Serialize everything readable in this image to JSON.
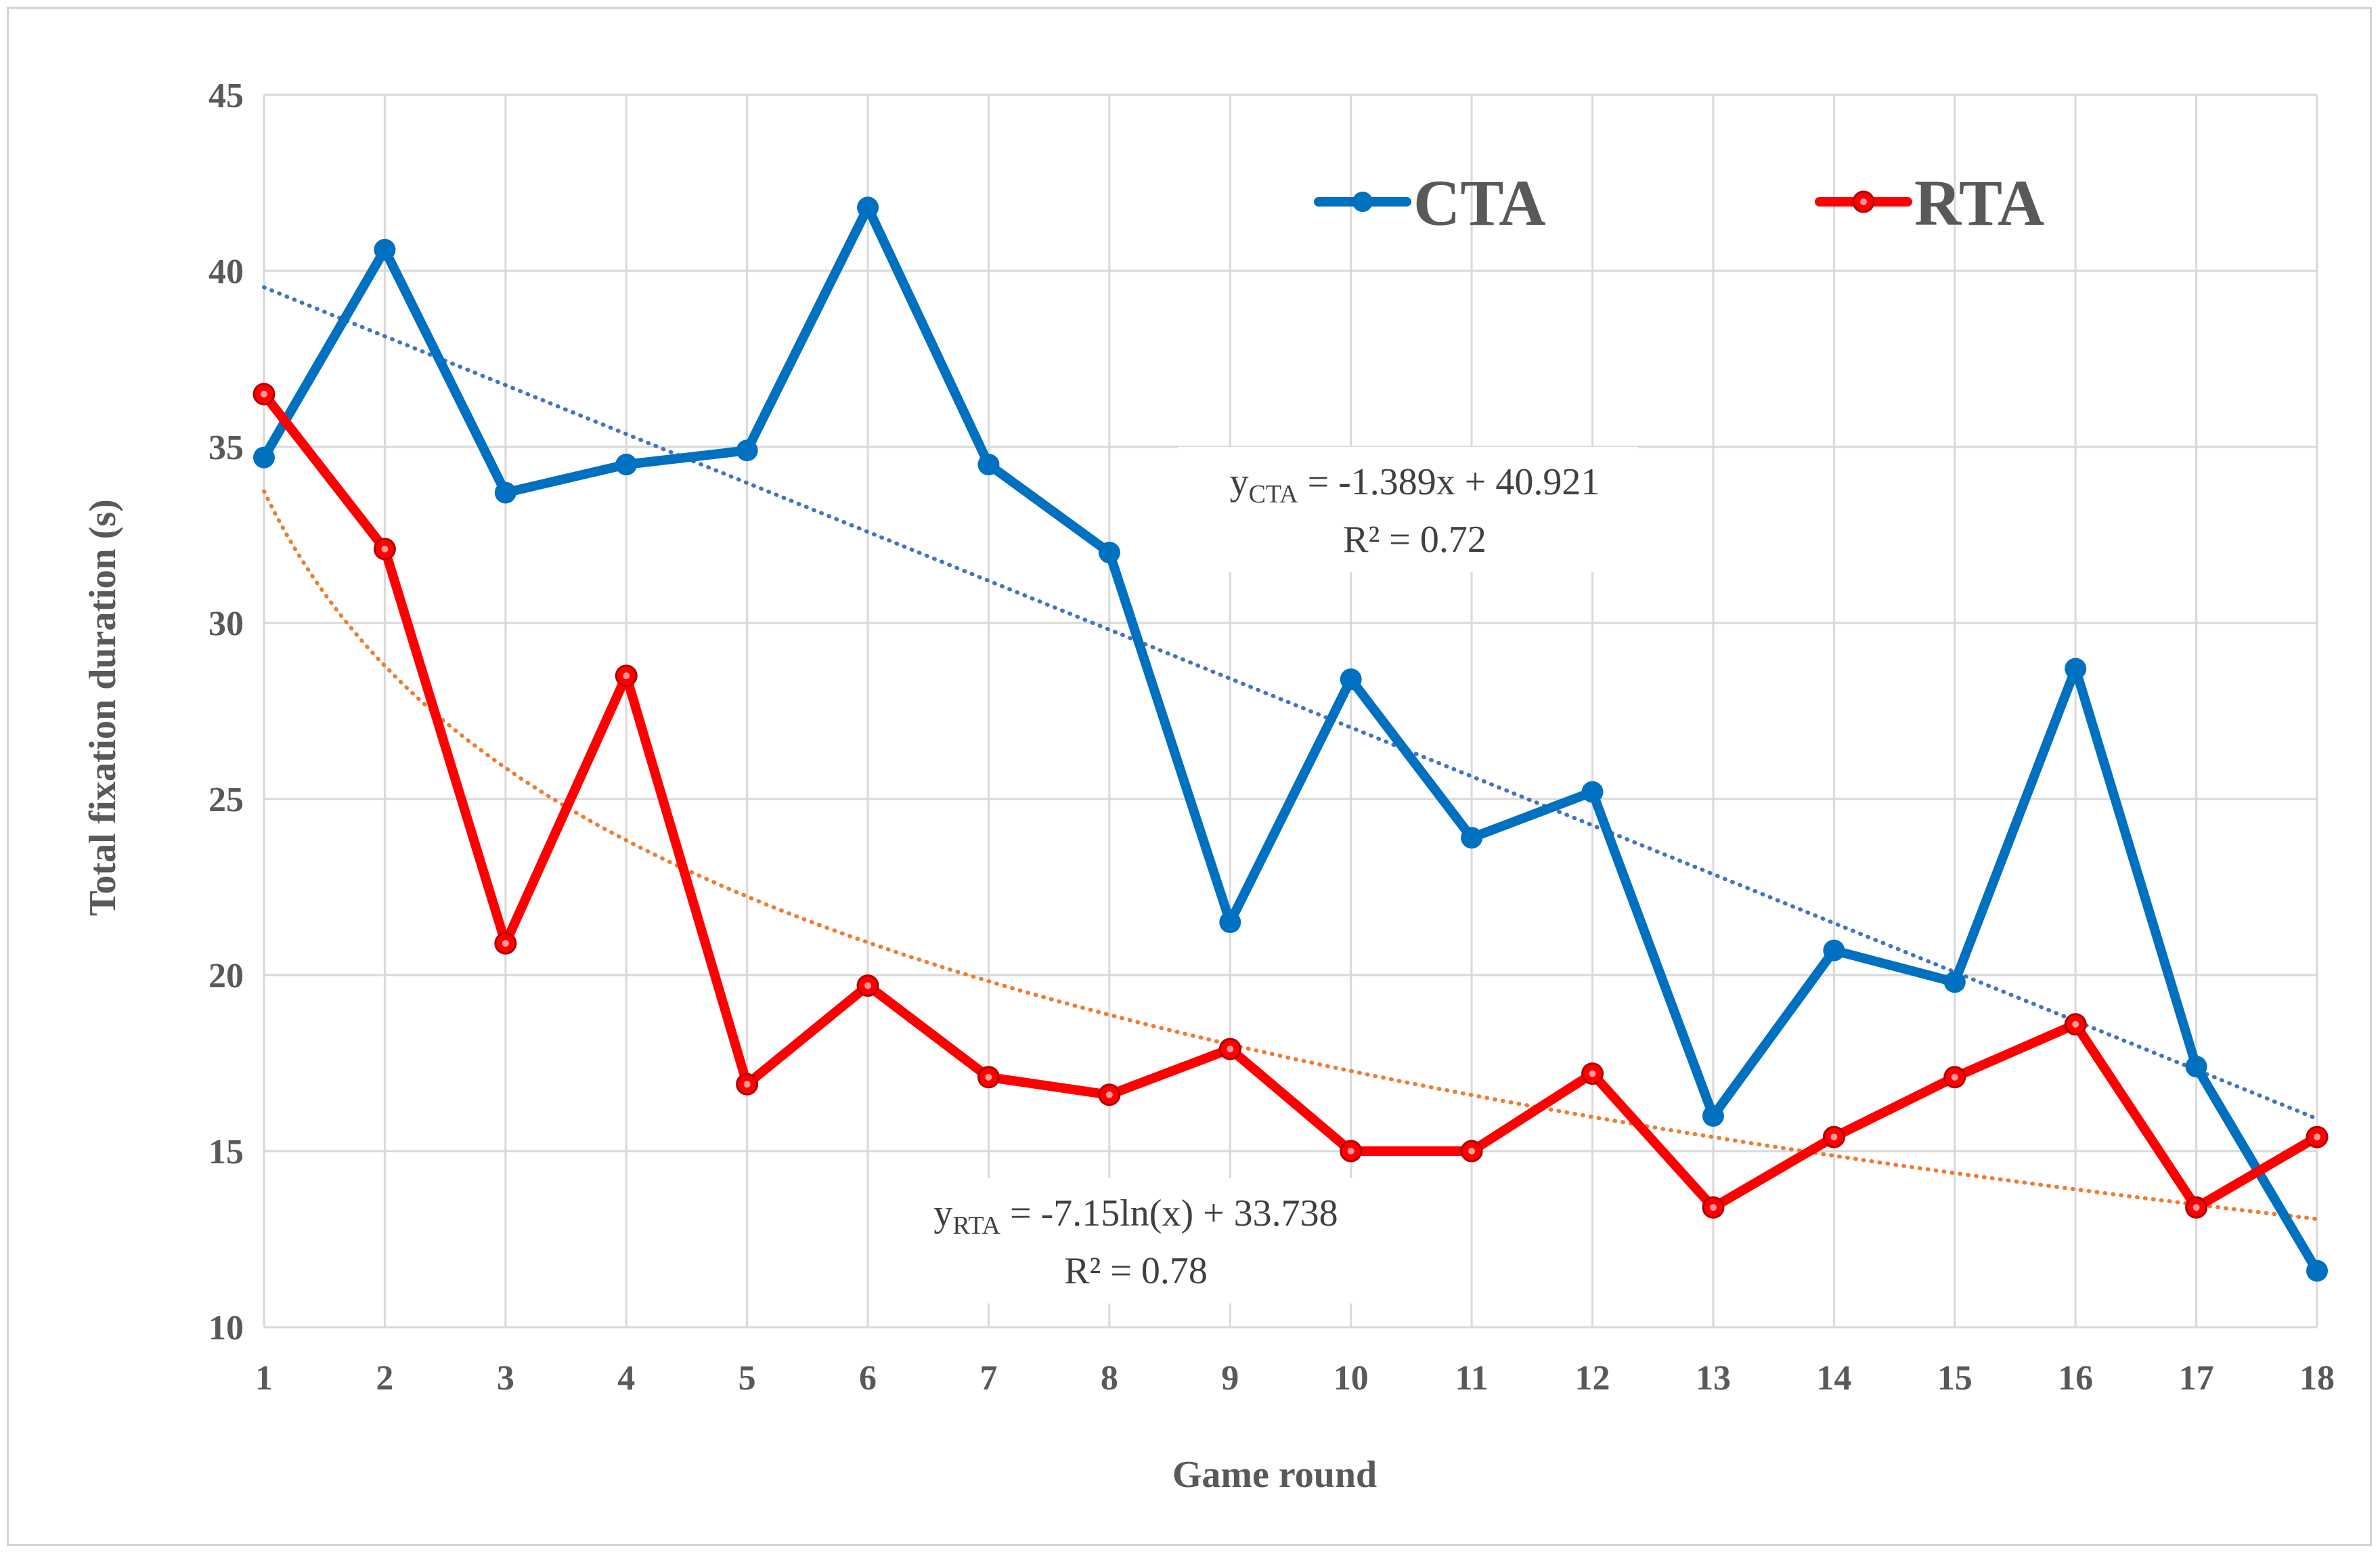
{
  "chart_data": {
    "type": "line",
    "title": "",
    "xlabel": "Game round",
    "ylabel": "Total fixation duration (s)",
    "ylim": [
      10,
      45
    ],
    "y_ticks": [
      "10",
      "15",
      "20",
      "25",
      "30",
      "35",
      "40",
      "45"
    ],
    "x": [
      1,
      2,
      3,
      4,
      5,
      6,
      7,
      8,
      9,
      10,
      11,
      12,
      13,
      14,
      15,
      16,
      17,
      18
    ],
    "x_ticks": [
      "1",
      "2",
      "3",
      "4",
      "5",
      "6",
      "7",
      "8",
      "9",
      "10",
      "11",
      "12",
      "13",
      "14",
      "15",
      "16",
      "17",
      "18"
    ],
    "grid": true,
    "legend_position": "top-right",
    "series": [
      {
        "name": "CTA",
        "color": "#0070c0",
        "values": [
          34.7,
          40.6,
          33.7,
          34.5,
          34.9,
          41.8,
          34.5,
          32.0,
          21.5,
          28.4,
          23.9,
          25.2,
          16.0,
          20.7,
          19.8,
          28.7,
          17.4,
          11.6
        ],
        "trend": {
          "type": "linear",
          "slope": -1.389,
          "intercept": 40.921,
          "color": "#4472c4"
        }
      },
      {
        "name": "RTA",
        "color": "#ff0000",
        "values": [
          36.5,
          32.1,
          20.9,
          28.5,
          16.9,
          19.7,
          17.1,
          16.6,
          17.9,
          15.0,
          15.0,
          17.2,
          13.4,
          15.4,
          17.1,
          18.6,
          13.4,
          15.4
        ],
        "trend": {
          "type": "log",
          "slope": -7.15,
          "intercept": 33.738,
          "color": "#ed7d31"
        }
      }
    ],
    "annotations": {
      "cta_eq_y": "y",
      "cta_eq_sub": "CTA",
      "cta_eq_rest": " = -1.389x + 40.921",
      "cta_r2": "R² = 0.72",
      "rta_eq_y": "y",
      "rta_eq_sub": "RTA",
      "rta_eq_rest": " = -7.15ln(x) + 33.738",
      "rta_r2": "R² = 0.78"
    }
  }
}
